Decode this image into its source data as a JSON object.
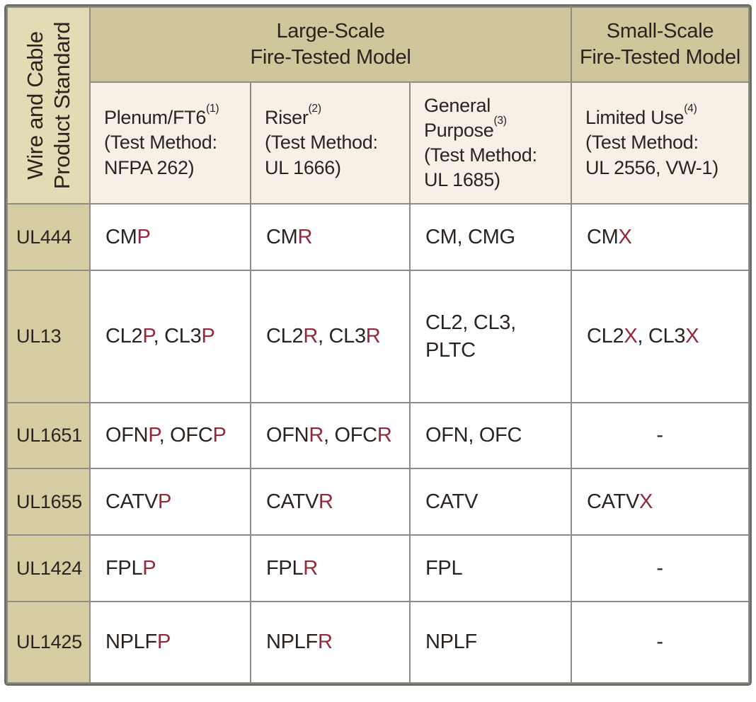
{
  "colors": {
    "band_bg": "#cfc69b",
    "corner_bg": "#e2dbb3",
    "row_label_bg": "#d5cca2",
    "subheader_bg": "#f7f0e6",
    "cell_bg": "#ffffff",
    "grid_line": "#8e8c87",
    "outer_border": "#6f6d68",
    "text_dark": "#2b2320",
    "accent_red": "#932838"
  },
  "chart_data": {
    "type": "table",
    "corner_header_lines": [
      "Wire and Cable",
      "Product Standard"
    ],
    "column_groups": [
      {
        "label_lines": [
          "Large-Scale",
          "Fire-Tested Model"
        ],
        "span": 3
      },
      {
        "label_lines": [
          "Small-Scale",
          "Fire-Tested Model"
        ],
        "span": 1
      }
    ],
    "columns": [
      {
        "name_lines": [
          "Plenum/FT6"
        ],
        "footnote": "(1)",
        "method_lines": [
          "(Test Method:",
          "NFPA 262)"
        ]
      },
      {
        "name_lines": [
          "Riser"
        ],
        "footnote": "(2)",
        "method_lines": [
          "(Test Method:",
          "UL 1666)"
        ]
      },
      {
        "name_lines": [
          "General",
          "Purpose"
        ],
        "footnote": "(3)",
        "method_lines": [
          "(Test Method:",
          "UL 1685)"
        ]
      },
      {
        "name_lines": [
          "Limited Use"
        ],
        "footnote": "(4)",
        "method_lines": [
          "(Test Method:",
          "UL 2556, VW-1)"
        ]
      }
    ],
    "red_letter_by_column": [
      "P",
      "R",
      "",
      "X"
    ],
    "rows": [
      {
        "standard": "UL444",
        "values": [
          "CMP",
          "CMR",
          "CM, CMG",
          "CMX"
        ]
      },
      {
        "standard": "UL13",
        "values": [
          "CL2P, CL3P",
          "CL2R, CL3R",
          [
            "CL2, CL3,",
            "PLTC"
          ],
          "CL2X, CL3X"
        ]
      },
      {
        "standard": "UL1651",
        "values": [
          "OFNP, OFCP",
          "OFNR, OFCR",
          "OFN, OFC",
          "-"
        ]
      },
      {
        "standard": "UL1655",
        "values": [
          "CATVP",
          "CATVR",
          "CATV",
          "CATVX"
        ]
      },
      {
        "standard": "UL1424",
        "values": [
          "FPLP",
          "FPLR",
          "FPL",
          "-"
        ]
      },
      {
        "standard": "UL1425",
        "values": [
          "NPLFP",
          "NPLFR",
          "NPLF",
          "-"
        ]
      }
    ]
  }
}
